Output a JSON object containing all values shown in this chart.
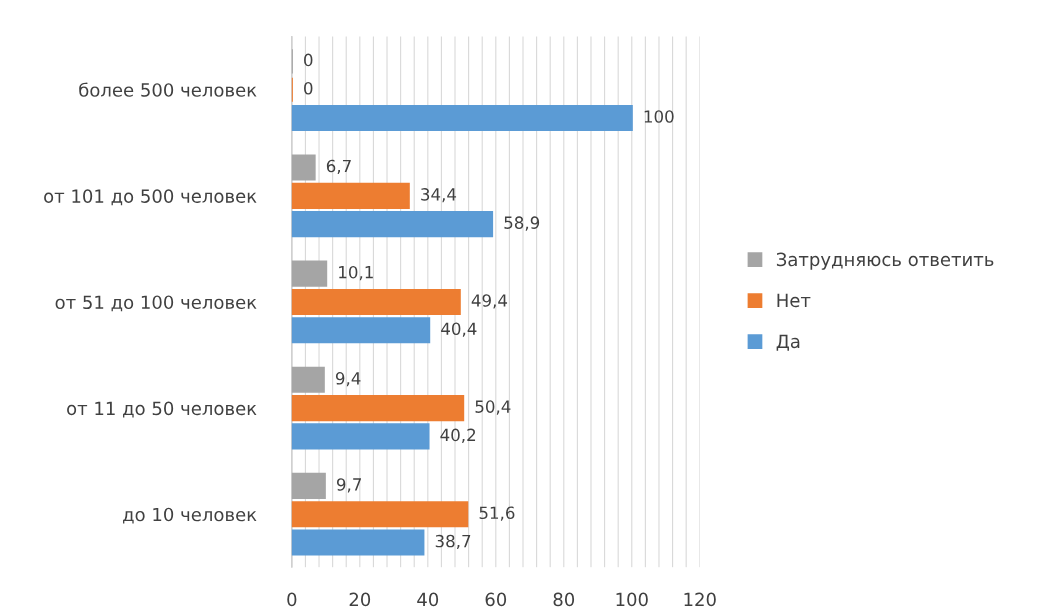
{
  "chart_data": {
    "type": "bar",
    "orientation": "horizontal",
    "categories": [
      "более 500 человек",
      "от 101 до 500 человек",
      "от 51 до 100 человек",
      "от 11 до 50 человек",
      "до 10 человек"
    ],
    "series": [
      {
        "name": "Затрудняюсь ответить",
        "color": "#a5a5a5",
        "values": [
          0,
          6.7,
          10.1,
          9.4,
          9.7
        ],
        "value_labels": [
          "0",
          "6,7",
          "10,1",
          "9,4",
          "9,7"
        ]
      },
      {
        "name": "Нет",
        "color": "#ed7d31",
        "values": [
          0,
          34.4,
          49.4,
          50.4,
          51.6
        ],
        "value_labels": [
          "0",
          "34,4",
          "49,4",
          "50,4",
          "51,6"
        ]
      },
      {
        "name": "Да",
        "color": "#5b9bd5",
        "values": [
          100,
          58.9,
          40.4,
          40.2,
          38.7
        ],
        "value_labels": [
          "100",
          "58,9",
          "40,4",
          "40,2",
          "38,7"
        ]
      }
    ],
    "xlim": [
      0,
      120
    ],
    "xticks": [
      0,
      20,
      40,
      60,
      80,
      100,
      120
    ],
    "grid": "x",
    "legend": "right"
  }
}
